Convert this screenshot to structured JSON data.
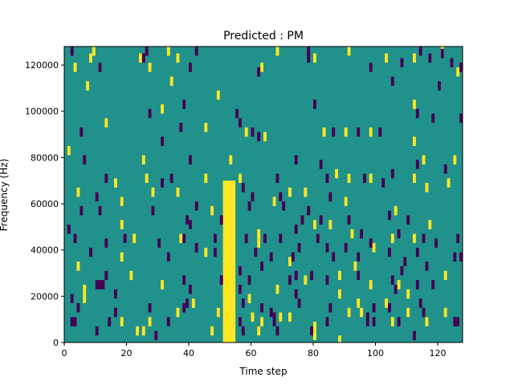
{
  "chart_data": {
    "type": "heatmap",
    "title": "Predicted : PM",
    "xlabel": "Time step",
    "ylabel": "Frequency (Hz)",
    "xlim": [
      0,
      128
    ],
    "ylim": [
      0,
      128000
    ],
    "x_ticks": [
      0,
      20,
      40,
      60,
      80,
      100,
      120
    ],
    "x_tick_labels": [
      "0",
      "20",
      "40",
      "60",
      "80",
      "100",
      "120"
    ],
    "y_ticks": [
      0,
      20000,
      40000,
      60000,
      80000,
      100000,
      120000
    ],
    "y_tick_labels": [
      "0",
      "20000",
      "40000",
      "60000",
      "80000",
      "100000",
      "120000"
    ],
    "grid": false,
    "colormap": "viridis",
    "background_value": 0,
    "colors": {
      "background": "#21918c",
      "high": "#fde725",
      "low": "#440154"
    },
    "yellow_band": {
      "x_start": 51,
      "x_end": 55,
      "y_start": 0,
      "y_end": 70000
    },
    "high_cells": [
      [
        9,
        127000
      ],
      [
        33,
        127000
      ],
      [
        68,
        127000
      ],
      [
        91,
        127000
      ],
      [
        121,
        127000
      ],
      [
        8,
        123000
      ],
      [
        24,
        123000
      ],
      [
        36,
        123000
      ],
      [
        80,
        123000
      ],
      [
        103,
        123000
      ],
      [
        112,
        123000
      ],
      [
        3,
        119000
      ],
      [
        27,
        119000
      ],
      [
        63,
        119000
      ],
      [
        126,
        117000
      ],
      [
        7,
        111000
      ],
      [
        34,
        113000
      ],
      [
        49,
        107000
      ],
      [
        31,
        101000
      ],
      [
        112,
        103000
      ],
      [
        13,
        95000
      ],
      [
        45,
        93000
      ],
      [
        58,
        91000
      ],
      [
        64,
        89000
      ],
      [
        83,
        91000
      ],
      [
        90,
        91000
      ],
      [
        98,
        91000
      ],
      [
        112,
        87000
      ],
      [
        1,
        83000
      ],
      [
        25,
        79000
      ],
      [
        53,
        79000
      ],
      [
        87,
        73000
      ],
      [
        115,
        79000
      ],
      [
        125,
        79000
      ],
      [
        26,
        71000
      ],
      [
        45,
        71000
      ],
      [
        56,
        71000
      ],
      [
        91,
        71000
      ],
      [
        98,
        71000
      ],
      [
        112,
        71000
      ],
      [
        16,
        69000
      ],
      [
        28,
        65000
      ],
      [
        72,
        65000
      ],
      [
        77,
        65000
      ],
      [
        116,
        67000
      ],
      [
        123,
        69000
      ],
      [
        4,
        65000
      ],
      [
        18,
        61000
      ],
      [
        36,
        65000
      ],
      [
        67,
        61000
      ],
      [
        90,
        61000
      ],
      [
        106,
        57000
      ],
      [
        47,
        57000
      ],
      [
        52,
        55000
      ],
      [
        18,
        51000
      ],
      [
        62,
        47000
      ],
      [
        80,
        51000
      ],
      [
        85,
        51000
      ],
      [
        117,
        51000
      ],
      [
        22,
        45000
      ],
      [
        37,
        45000
      ],
      [
        62,
        43000
      ],
      [
        92,
        47000
      ],
      [
        105,
        45000
      ],
      [
        112,
        45000
      ],
      [
        18,
        37000
      ],
      [
        45,
        39000
      ],
      [
        99,
        41000
      ],
      [
        93,
        33000
      ],
      [
        72,
        35000
      ],
      [
        88,
        29000
      ],
      [
        4,
        33000
      ],
      [
        21,
        29000
      ],
      [
        77,
        27000
      ],
      [
        98,
        25000
      ],
      [
        107,
        25000
      ],
      [
        122,
        29000
      ],
      [
        31,
        25000
      ],
      [
        6,
        23000
      ],
      [
        51,
        23000
      ],
      [
        68,
        23000
      ],
      [
        88,
        21000
      ],
      [
        110,
        21000
      ],
      [
        6,
        19000
      ],
      [
        41,
        17000
      ],
      [
        59,
        19000
      ],
      [
        94,
        17000
      ],
      [
        103,
        17000
      ],
      [
        60,
        11000
      ],
      [
        69,
        11000
      ],
      [
        36,
        13000
      ],
      [
        49,
        13000
      ],
      [
        95,
        13000
      ],
      [
        72,
        11000
      ],
      [
        91,
        13000
      ],
      [
        110,
        13000
      ],
      [
        122,
        13000
      ],
      [
        18,
        9000
      ],
      [
        27,
        9000
      ],
      [
        63,
        9000
      ],
      [
        80,
        7000
      ],
      [
        105,
        9000
      ],
      [
        116,
        9000
      ],
      [
        23,
        5000
      ],
      [
        25,
        5000
      ],
      [
        47,
        5000
      ],
      [
        62,
        5000
      ],
      [
        80,
        3000
      ],
      [
        88,
        1000
      ]
    ],
    "low_cells": [
      [
        2,
        127000
      ],
      [
        26,
        127000
      ],
      [
        42,
        127000
      ],
      [
        78,
        127000
      ],
      [
        114,
        127000
      ],
      [
        121,
        125000
      ],
      [
        25,
        123000
      ],
      [
        78,
        123000
      ],
      [
        108,
        121000
      ],
      [
        124,
        121000
      ],
      [
        117,
        123000
      ],
      [
        11,
        119000
      ],
      [
        40,
        119000
      ],
      [
        62,
        117000
      ],
      [
        98,
        119000
      ],
      [
        127,
        119000
      ],
      [
        105,
        113000
      ],
      [
        120,
        111000
      ],
      [
        38,
        103000
      ],
      [
        55,
        99000
      ],
      [
        80,
        103000
      ],
      [
        27,
        99000
      ],
      [
        113,
        99000
      ],
      [
        118,
        97000
      ],
      [
        127,
        97000
      ],
      [
        56,
        95000
      ],
      [
        5,
        91000
      ],
      [
        37,
        93000
      ],
      [
        60,
        91000
      ],
      [
        62,
        89000
      ],
      [
        86,
        91000
      ],
      [
        94,
        91000
      ],
      [
        101,
        91000
      ],
      [
        31,
        87000
      ],
      [
        6,
        79000
      ],
      [
        40,
        79000
      ],
      [
        74,
        79000
      ],
      [
        82,
        77000
      ],
      [
        113,
        77000
      ],
      [
        122,
        75000
      ],
      [
        13,
        71000
      ],
      [
        34,
        71000
      ],
      [
        57,
        67000
      ],
      [
        68,
        71000
      ],
      [
        84,
        71000
      ],
      [
        96,
        71000
      ],
      [
        105,
        73000
      ],
      [
        10,
        63000
      ],
      [
        31,
        69000
      ],
      [
        60,
        63000
      ],
      [
        69,
        63000
      ],
      [
        85,
        63000
      ],
      [
        102,
        69000
      ],
      [
        5,
        57000
      ],
      [
        11,
        57000
      ],
      [
        28,
        57000
      ],
      [
        42,
        59000
      ],
      [
        59,
        59000
      ],
      [
        70,
        59000
      ],
      [
        78,
        57000
      ],
      [
        39,
        53000
      ],
      [
        40,
        51000
      ],
      [
        50,
        53000
      ],
      [
        76,
        53000
      ],
      [
        82,
        53000
      ],
      [
        91,
        53000
      ],
      [
        104,
        55000
      ],
      [
        110,
        53000
      ],
      [
        1,
        49000
      ],
      [
        19,
        45000
      ],
      [
        38,
        45000
      ],
      [
        48,
        45000
      ],
      [
        58,
        45000
      ],
      [
        64,
        45000
      ],
      [
        69,
        45000
      ],
      [
        74,
        49000
      ],
      [
        81,
        45000
      ],
      [
        95,
        47000
      ],
      [
        98,
        43000
      ],
      [
        107,
        47000
      ],
      [
        115,
        45000
      ],
      [
        126,
        45000
      ],
      [
        3,
        45000
      ],
      [
        13,
        43000
      ],
      [
        30,
        43000
      ],
      [
        42,
        41000
      ],
      [
        48,
        39000
      ],
      [
        61,
        39000
      ],
      [
        75,
        41000
      ],
      [
        84,
        41000
      ],
      [
        90,
        41000
      ],
      [
        104,
        39000
      ],
      [
        113,
        39000
      ],
      [
        119,
        43000
      ],
      [
        125,
        37000
      ],
      [
        127,
        37000
      ],
      [
        8,
        39000
      ],
      [
        33,
        37000
      ],
      [
        66,
        37000
      ],
      [
        73,
        37000
      ],
      [
        86,
        37000
      ],
      [
        94,
        37000
      ],
      [
        109,
        35000
      ],
      [
        56,
        31000
      ],
      [
        63,
        33000
      ],
      [
        74,
        29000
      ],
      [
        79,
        29000
      ],
      [
        94,
        29000
      ],
      [
        108,
        31000
      ],
      [
        116,
        33000
      ],
      [
        13,
        29000
      ],
      [
        38,
        27000
      ],
      [
        50,
        27000
      ],
      [
        59,
        27000
      ],
      [
        72,
        27000
      ],
      [
        84,
        27000
      ],
      [
        105,
        27000
      ],
      [
        113,
        25000
      ],
      [
        10,
        25000
      ],
      [
        11,
        25000
      ],
      [
        12,
        25000
      ],
      [
        16,
        21000
      ],
      [
        40,
        23000
      ],
      [
        56,
        23000
      ],
      [
        74,
        21000
      ],
      [
        106,
        23000
      ],
      [
        118,
        25000
      ],
      [
        2,
        19000
      ],
      [
        27,
        15000
      ],
      [
        39,
        17000
      ],
      [
        57,
        17000
      ],
      [
        63,
        15000
      ],
      [
        75,
        17000
      ],
      [
        99,
        15000
      ],
      [
        104,
        15000
      ],
      [
        114,
        17000
      ],
      [
        4,
        15000
      ],
      [
        16,
        13000
      ],
      [
        38,
        15000
      ],
      [
        66,
        13000
      ],
      [
        67,
        11000
      ],
      [
        85,
        15000
      ],
      [
        97,
        11000
      ],
      [
        115,
        13000
      ],
      [
        3,
        9000
      ],
      [
        14,
        9000
      ],
      [
        33,
        9000
      ],
      [
        56,
        9000
      ],
      [
        67,
        9000
      ],
      [
        84,
        9000
      ],
      [
        97,
        9000
      ],
      [
        99,
        9000
      ],
      [
        107,
        9000
      ],
      [
        125,
        9000
      ],
      [
        126,
        9000
      ],
      [
        2,
        9000
      ],
      [
        10,
        5000
      ],
      [
        29,
        3000
      ],
      [
        57,
        5000
      ],
      [
        68,
        5000
      ],
      [
        79,
        5000
      ],
      [
        112,
        3000
      ]
    ]
  }
}
